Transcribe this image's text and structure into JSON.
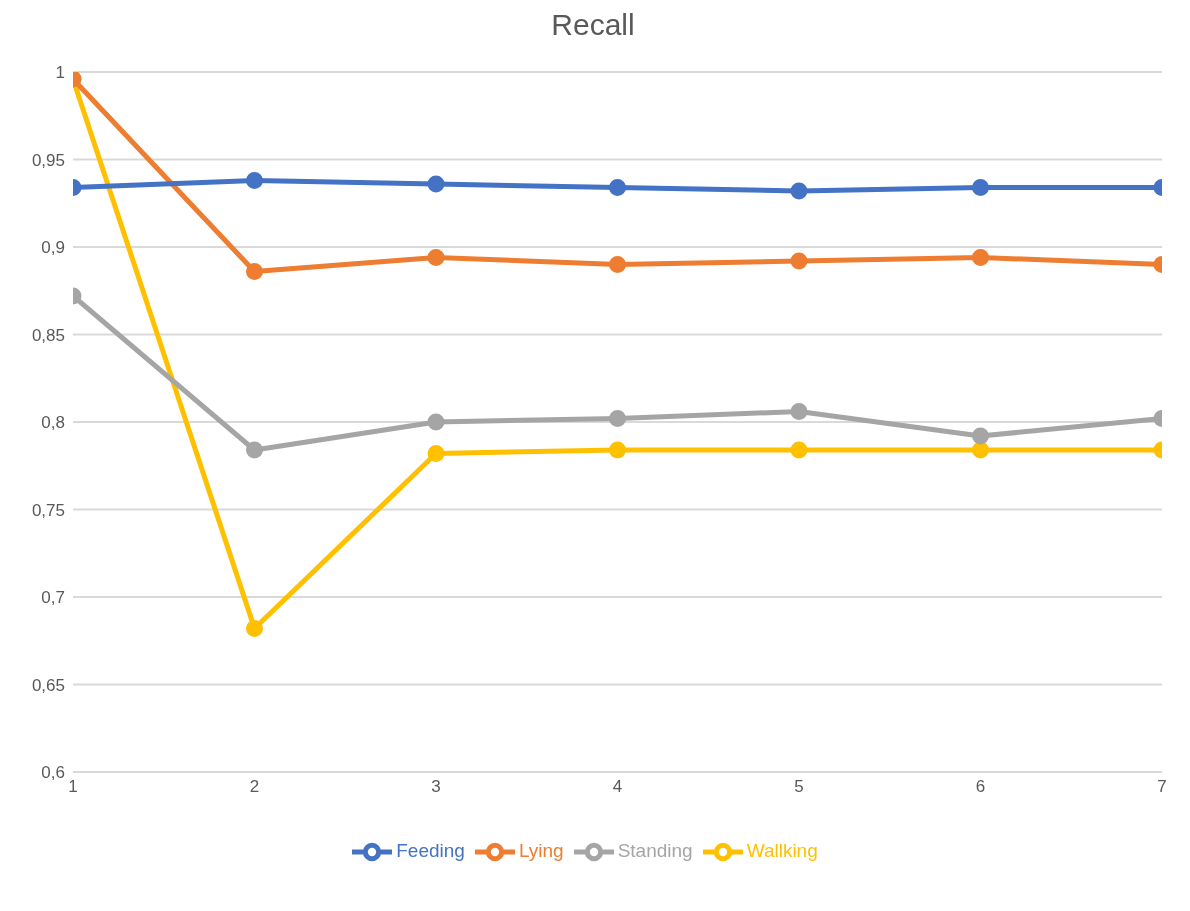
{
  "chart_data": {
    "type": "line",
    "title": "Recall",
    "x": [
      1,
      2,
      3,
      4,
      5,
      6,
      7
    ],
    "xlim": [
      1,
      7
    ],
    "xticks": [
      1,
      2,
      3,
      4,
      5,
      6,
      7
    ],
    "ylim": [
      0.6,
      1
    ],
    "yticks": [
      {
        "value": 0.6,
        "label": "0,6"
      },
      {
        "value": 0.65,
        "label": "0,65"
      },
      {
        "value": 0.7,
        "label": "0,7"
      },
      {
        "value": 0.75,
        "label": "0,75"
      },
      {
        "value": 0.8,
        "label": "0,8"
      },
      {
        "value": 0.85,
        "label": "0,85"
      },
      {
        "value": 0.9,
        "label": "0,9"
      },
      {
        "value": 0.95,
        "label": "0,95"
      },
      {
        "value": 1,
        "label": "1"
      }
    ],
    "grid": "y",
    "legend": "bottom",
    "marker": "circle",
    "line_style": "solid",
    "series": [
      {
        "name": "Feeding",
        "color": "#4472c4",
        "values": [
          0.934,
          0.938,
          0.936,
          0.934,
          0.932,
          0.934,
          0.934
        ]
      },
      {
        "name": "Lying",
        "color": "#ed7d31",
        "values": [
          0.996,
          0.886,
          0.894,
          0.89,
          0.892,
          0.894,
          0.89
        ]
      },
      {
        "name": "Standing",
        "color": "#a5a5a5",
        "values": [
          0.872,
          0.784,
          0.8,
          0.802,
          0.806,
          0.792,
          0.802
        ]
      },
      {
        "name": "Wallking",
        "color": "#ffc000",
        "values": [
          0.996,
          0.682,
          0.782,
          0.784,
          0.784,
          0.784,
          0.784
        ]
      }
    ]
  }
}
